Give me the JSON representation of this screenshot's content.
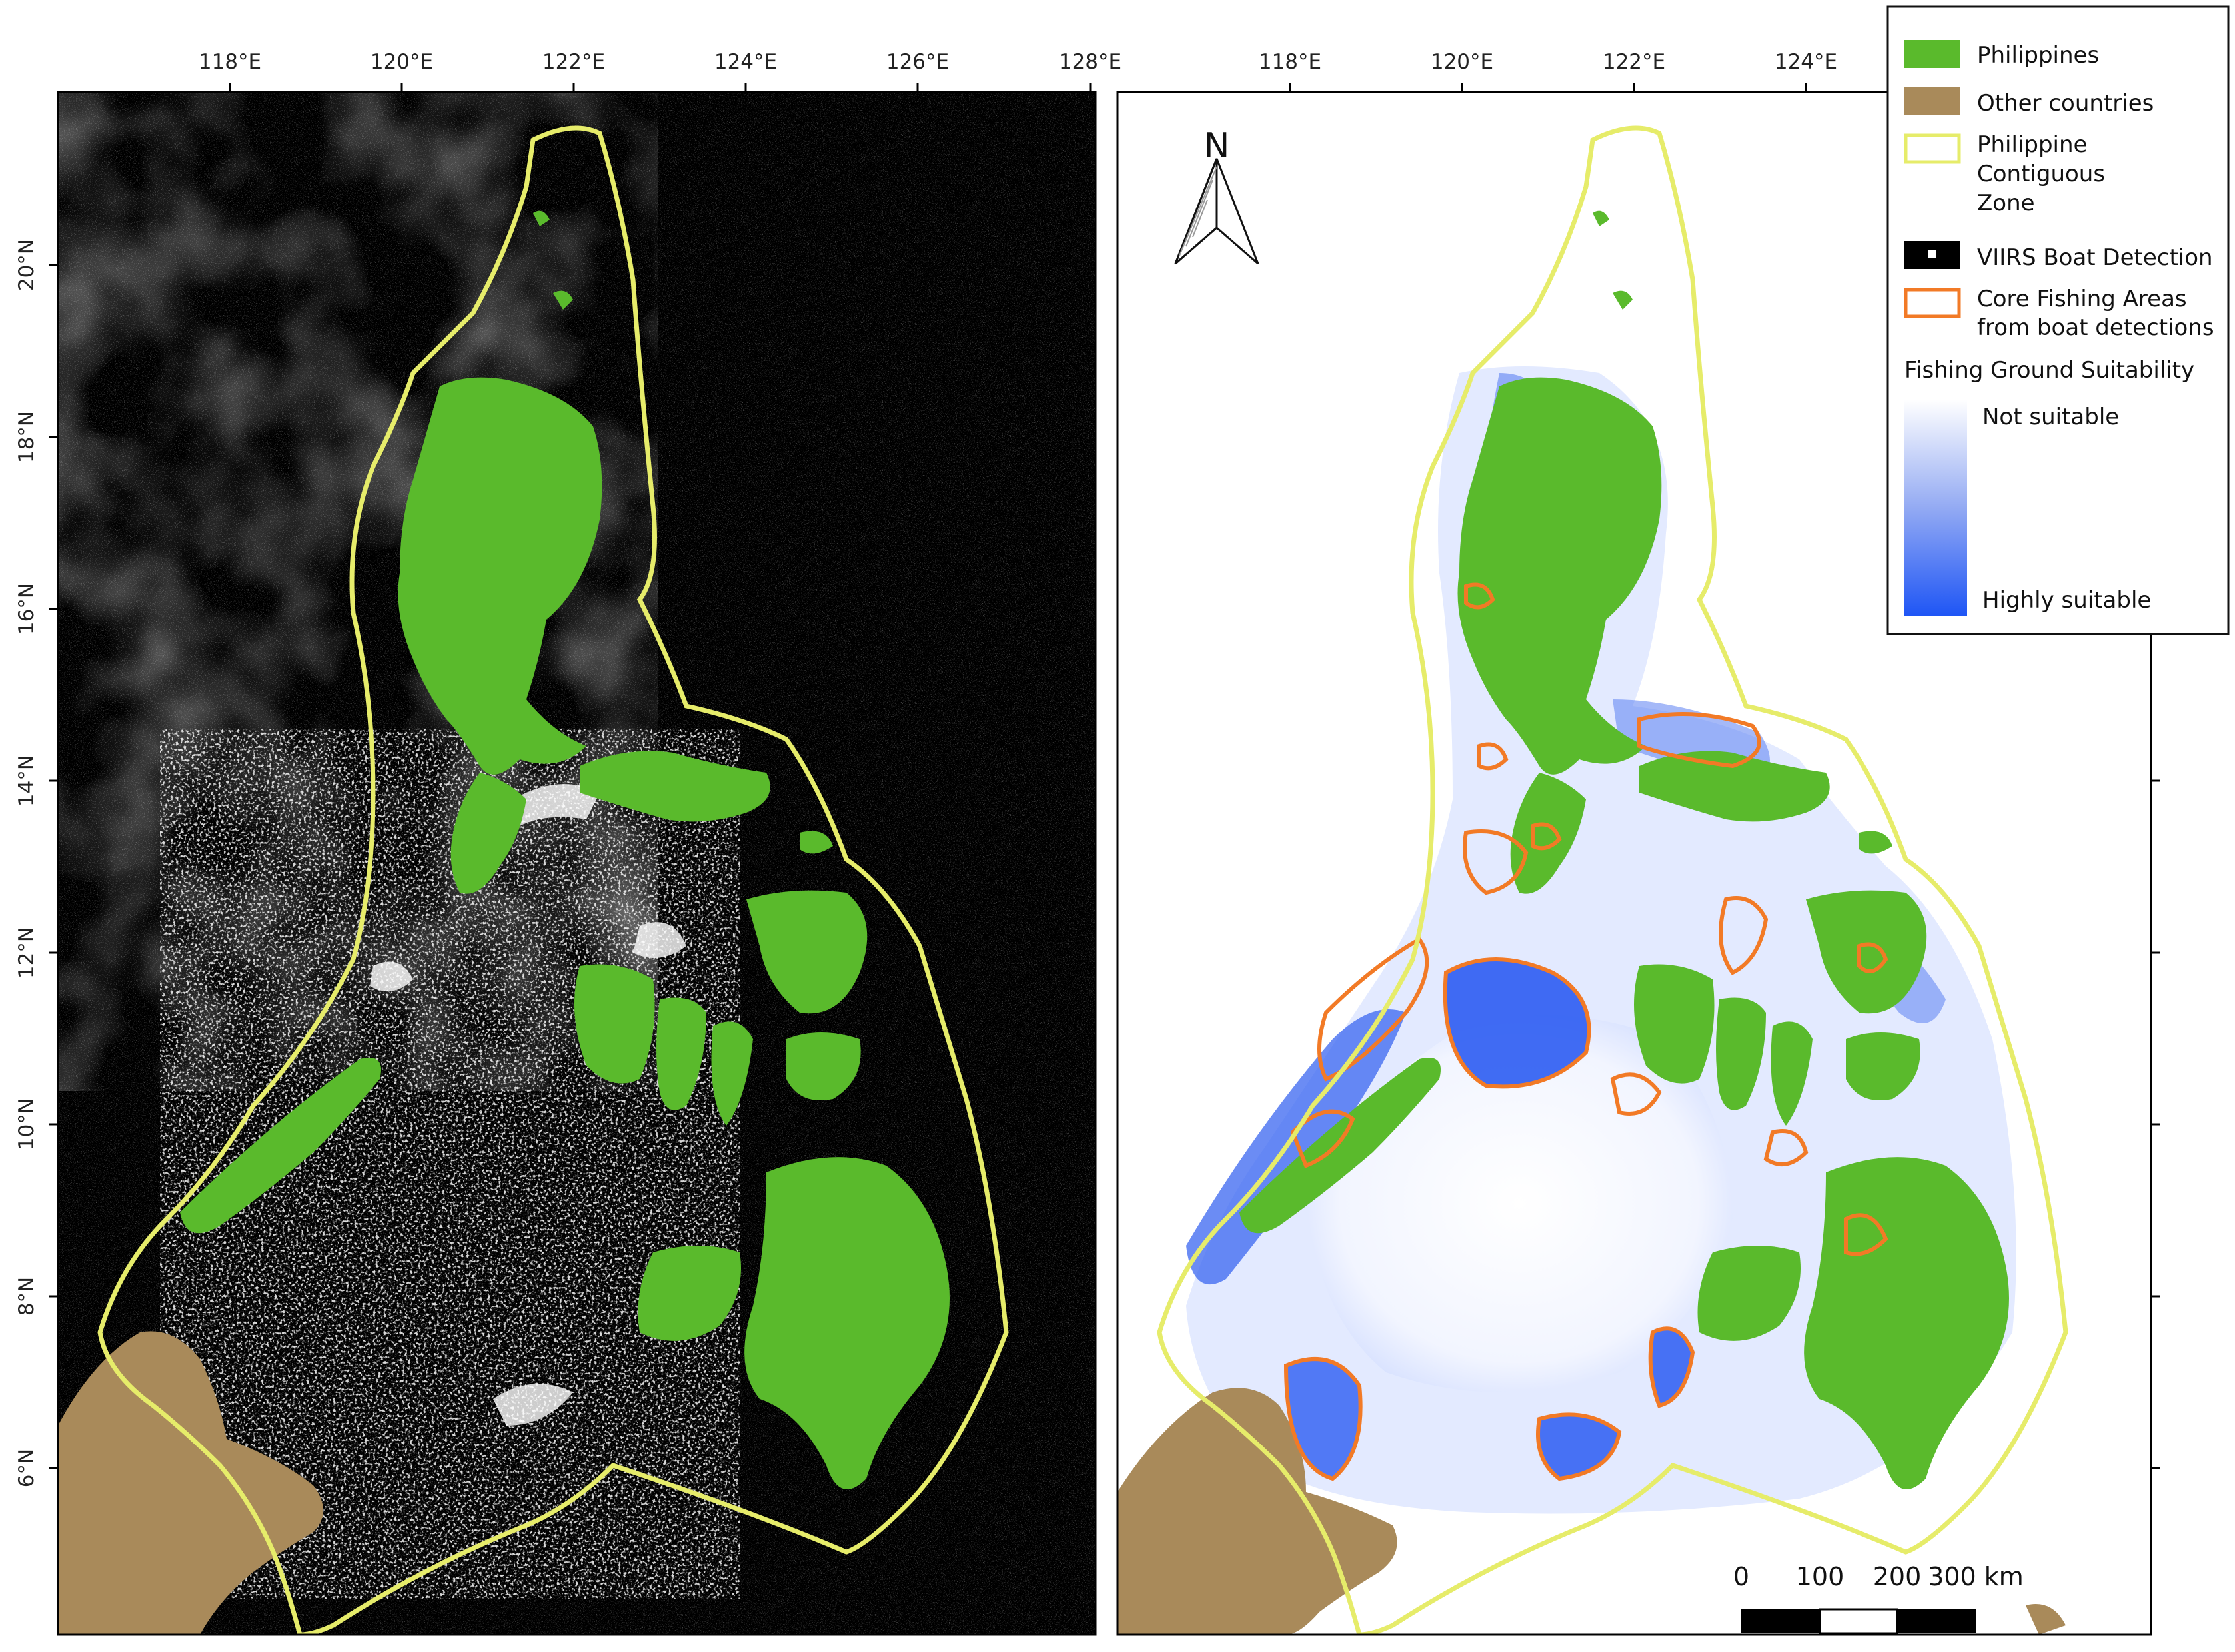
{
  "colors": {
    "philippines": "#5aba2c",
    "other_countries": "#a98a5a",
    "contiguous_zone": "#e6ec6a",
    "core_fishing": "#f27a26",
    "boat_panel_bg": "#000000",
    "suitability_high": "#1e55f5",
    "suitability_low": "#ffffff"
  },
  "left_map": {
    "lon_ticks": [
      "118°E",
      "120°E",
      "122°E",
      "124°E",
      "126°E",
      "128°E"
    ],
    "lat_ticks": [
      "20°N",
      "18°N",
      "16°N",
      "14°N",
      "12°N",
      "10°N",
      "8°N",
      "6°N"
    ]
  },
  "right_map": {
    "lon_ticks": [
      "118°E",
      "120°E",
      "122°E",
      "124°E"
    ],
    "north_arrow_label": "N",
    "scale_bar": {
      "labels": [
        "0",
        "100",
        "200",
        "300 km"
      ]
    }
  },
  "legend": {
    "items": [
      {
        "label": "Philippines",
        "icon": "green-fill-swatch"
      },
      {
        "label": "Other countries",
        "icon": "brown-fill-swatch"
      },
      {
        "label_lines": [
          "Philippine",
          "Contiguous",
          "Zone"
        ],
        "icon": "yellow-outline-swatch"
      },
      {
        "label": "VIIRS Boat Detection",
        "icon": "black-square-white-dot-swatch"
      },
      {
        "label_lines": [
          "Core Fishing Areas",
          "from boat detections"
        ],
        "icon": "orange-outline-swatch"
      }
    ],
    "suitability": {
      "title": "Fishing Ground Suitability",
      "low_label": "Not suitable",
      "high_label": "Highly suitable"
    }
  }
}
